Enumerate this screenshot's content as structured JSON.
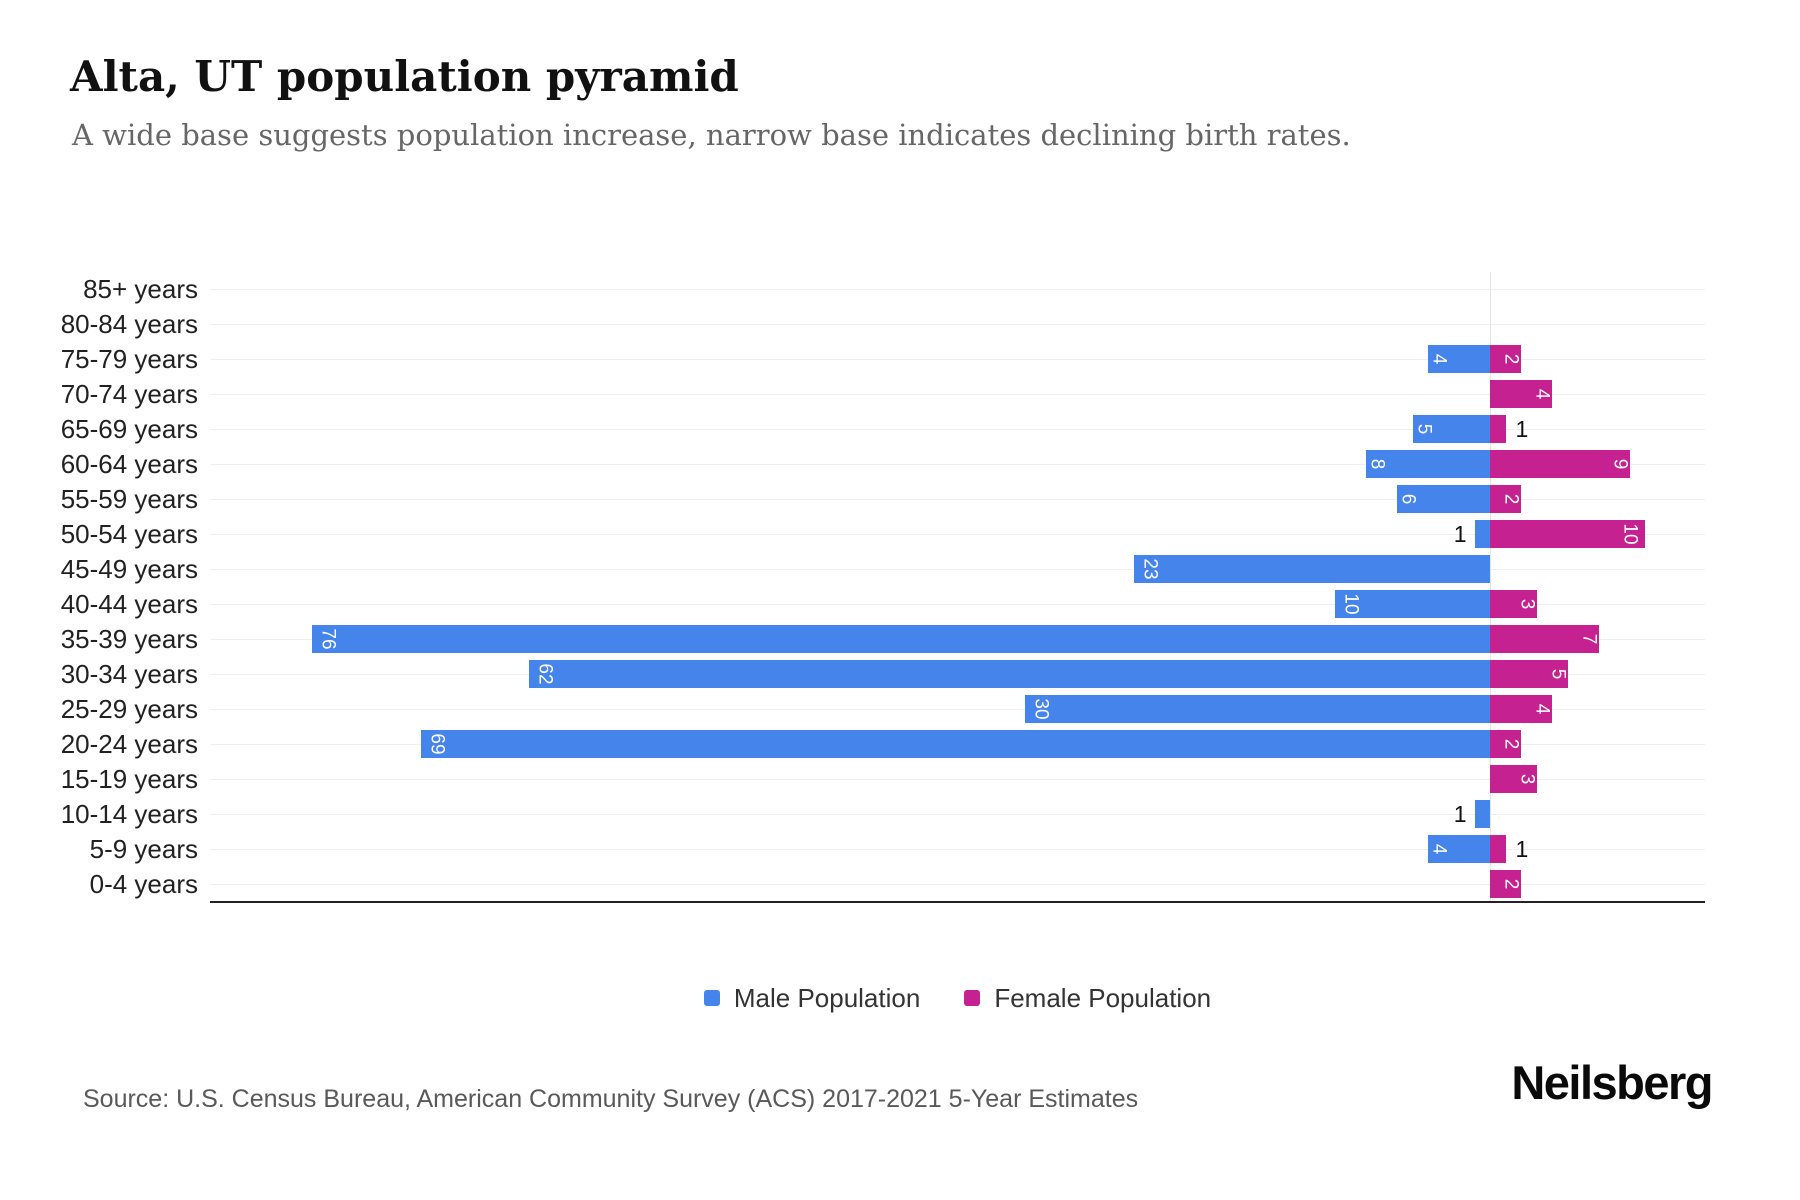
{
  "title": "Alta, UT population pyramid",
  "subtitle": "A wide base suggests population increase, narrow base indicates declining birth rates.",
  "legend": {
    "male": "Male Population",
    "female": "Female Population"
  },
  "source": "Source: U.S. Census Bureau, American Community Survey (ACS) 2017-2021 5-Year Estimates",
  "logo": "Neilsberg",
  "colors": {
    "male": "#4584EB",
    "female": "#C52191",
    "grid": "#efefef",
    "center_line": "#e4e4e4",
    "axis_line": "#222222",
    "bar_label": "#ffffff",
    "outside_label": "#111111"
  },
  "chart_data": {
    "type": "bar",
    "variant": "population-pyramid",
    "orientation": "horizontal",
    "grid": true,
    "legend_position": "bottom-center",
    "x_tick_labels_visible": false,
    "categories": [
      "85+ years",
      "80-84 years",
      "75-79 years",
      "70-74 years",
      "65-69 years",
      "60-64 years",
      "55-59 years",
      "50-54 years",
      "45-49 years",
      "40-44 years",
      "35-39 years",
      "30-34 years",
      "25-29 years",
      "20-24 years",
      "15-19 years",
      "10-14 years",
      "5-9 years",
      "0-4 years"
    ],
    "series": [
      {
        "name": "Male Population",
        "side": "left",
        "values": [
          0,
          0,
          4,
          0,
          5,
          8,
          6,
          1,
          23,
          10,
          76,
          62,
          30,
          69,
          0,
          1,
          4,
          0
        ]
      },
      {
        "name": "Female Population",
        "side": "right",
        "values": [
          0,
          0,
          2,
          4,
          1,
          9,
          2,
          10,
          0,
          3,
          7,
          5,
          4,
          2,
          3,
          0,
          1,
          2
        ]
      }
    ],
    "value_label_rule": "values >= 2 shown rotated 90deg in white inside bar at outer end; value 1 shown in black outside bar; zeros hidden",
    "xlabel": "",
    "ylabel": ""
  }
}
